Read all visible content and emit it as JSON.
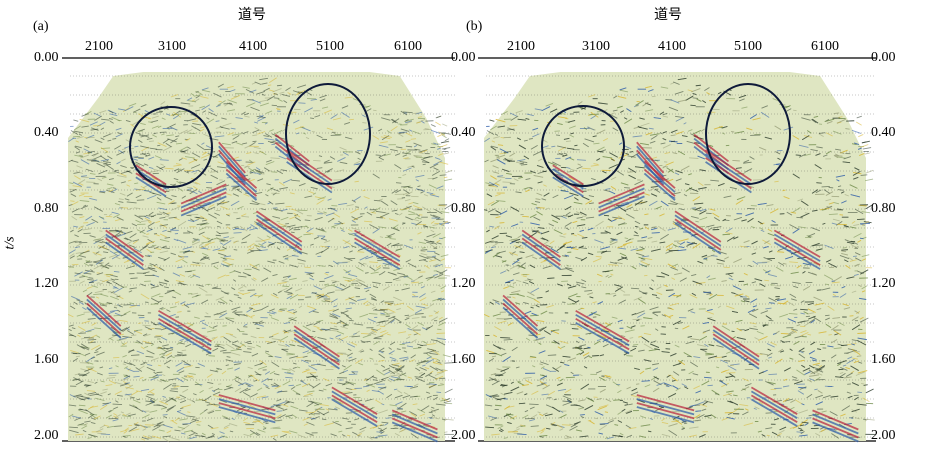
{
  "figure": {
    "ylabel": "t/s",
    "ticks_top": [
      "2100",
      "3100",
      "4100",
      "5100",
      "6100"
    ],
    "ticks_y": [
      "0.00",
      "0.40",
      "0.80",
      "1.20",
      "1.60",
      "2.00"
    ],
    "panels": [
      {
        "tag": "(a)",
        "xlabel": "道号"
      },
      {
        "tag": "(b)",
        "xlabel": "道号"
      }
    ]
  },
  "colors": {
    "background_section": "#dfe6c2",
    "wiggle_dark": "#2a3a2a",
    "event_red": "#b8203a",
    "event_blue": "#2a5aa8",
    "event_yellow": "#d8b530",
    "circle": "#0e1a3a"
  }
}
